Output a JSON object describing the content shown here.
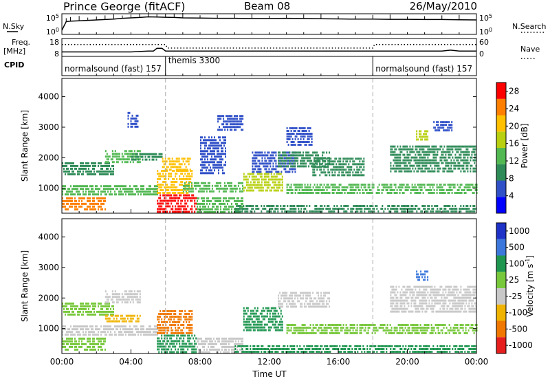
{
  "header": {
    "station": "Prince George (fitACF)",
    "beam": "Beam 08",
    "date": "26/May/2010"
  },
  "strip_labels": {
    "nsky": "N.Sky",
    "nsearch": "N.Search",
    "freq_line1": "Freq.",
    "freq_line2": "[MHz]",
    "nave": "Nave",
    "cpid": "CPID"
  },
  "chart_data": [
    {
      "type": "line",
      "panel": "noise",
      "left_ticks": [
        "10^5",
        "10^0"
      ],
      "right_ticks": [
        "10^5",
        "10^0"
      ],
      "series": [
        {
          "name": "N.Sky",
          "style": "solid",
          "x": [
            0,
            0.25,
            0.5,
            1,
            1.5,
            2,
            2.5,
            3,
            3.5,
            4,
            4.5,
            5,
            5.5,
            6,
            6.5,
            7,
            8,
            9,
            10,
            11,
            12,
            13,
            14,
            15,
            16,
            17,
            18,
            19,
            20,
            21,
            22,
            23,
            24
          ],
          "y": [
            0.2,
            0.62,
            0.64,
            0.66,
            0.68,
            0.7,
            0.72,
            0.74,
            0.78,
            0.8,
            0.82,
            0.85,
            0.84,
            0.83,
            0.82,
            0.8,
            0.79,
            0.78,
            0.78,
            0.77,
            0.77,
            0.78,
            0.77,
            0.76,
            0.75,
            0.74,
            0.74,
            0.73,
            0.73,
            0.72,
            0.72,
            0.71,
            0.7
          ]
        }
      ]
    },
    {
      "type": "line",
      "panel": "frequency",
      "left_ticks": [
        "18",
        "8"
      ],
      "right_ticks": [
        "60",
        "0"
      ],
      "series": [
        {
          "name": "Freq.",
          "style": "solid",
          "x": [
            0,
            1,
            2,
            3,
            4,
            5,
            5.3,
            5.5,
            5.8,
            6,
            6.5,
            8,
            10,
            12,
            14,
            16,
            18,
            19,
            20,
            21,
            22,
            22.5,
            23,
            24
          ],
          "y": [
            10.5,
            10.5,
            10.5,
            10.5,
            10.5,
            11,
            11,
            12.5,
            12.5,
            11,
            11,
            11,
            11,
            11,
            11,
            11,
            11,
            11,
            11,
            11,
            11,
            11.5,
            11,
            11
          ]
        },
        {
          "name": "Nave",
          "style": "dotted",
          "x": [
            0,
            6,
            6.1,
            18,
            18.1,
            24
          ],
          "y": [
            40,
            40,
            28,
            28,
            40,
            40
          ]
        }
      ]
    },
    {
      "type": "table",
      "panel": "cpid",
      "segments": [
        {
          "label": "normalsound (fast) 157",
          "start": 0.0,
          "end": 6.0
        },
        {
          "label": "themis 3300",
          "start": 6.0,
          "end": 18.0
        },
        {
          "label": "normalsound (fast) 157",
          "start": 18.0,
          "end": 24.0
        }
      ]
    },
    {
      "type": "heatmap",
      "panel": "power",
      "ylabel": "Slant Range [km]",
      "y_ticks": [
        1000,
        2000,
        3000,
        4000
      ],
      "ylim": [
        180,
        4600
      ],
      "colorbar": {
        "label": "Power [dB]",
        "ticks": [
          4,
          8,
          12,
          16,
          20,
          24,
          28
        ],
        "range": [
          0,
          30
        ],
        "colors": [
          "#0000ff",
          "#3050c8",
          "#2e8b57",
          "#52b852",
          "#b8d010",
          "#ffc000",
          "#ff8000",
          "#ff0000"
        ]
      },
      "regions": [
        {
          "t": [
            0.0,
            2.5
          ],
          "r": [
            300,
            700
          ],
          "v": 24
        },
        {
          "t": [
            0.0,
            5.5
          ],
          "r": [
            750,
            1100
          ],
          "v": 14
        },
        {
          "t": [
            0.0,
            3.0
          ],
          "r": [
            1450,
            1850
          ],
          "v": 10
        },
        {
          "t": [
            2.5,
            4.5
          ],
          "r": [
            1850,
            2250
          ],
          "v": 12
        },
        {
          "t": [
            4.0,
            5.8
          ],
          "r": [
            1950,
            2150
          ],
          "v": 8
        },
        {
          "t": [
            5.5,
            7.8
          ],
          "r": [
            180,
            800
          ],
          "v": 28
        },
        {
          "t": [
            5.5,
            7.5
          ],
          "r": [
            800,
            1600
          ],
          "v": 22
        },
        {
          "t": [
            5.8,
            7.4
          ],
          "r": [
            1600,
            2000
          ],
          "v": 20
        },
        {
          "t": [
            7.8,
            10.5
          ],
          "r": [
            180,
            700
          ],
          "v": 13
        },
        {
          "t": [
            7.0,
            10.5
          ],
          "r": [
            850,
            1200
          ],
          "v": 12
        },
        {
          "t": [
            8.0,
            9.5
          ],
          "r": [
            1450,
            2700
          ],
          "v": 7
        },
        {
          "t": [
            10.5,
            12.8
          ],
          "r": [
            900,
            1500
          ],
          "v": 16
        },
        {
          "t": [
            11.0,
            13.5
          ],
          "r": [
            1500,
            2200
          ],
          "v": 7
        },
        {
          "t": [
            9.0,
            10.5
          ],
          "r": [
            2900,
            3400
          ],
          "v": 7
        },
        {
          "t": [
            12.5,
            15.5
          ],
          "r": [
            1700,
            2200
          ],
          "v": 9
        },
        {
          "t": [
            13.0,
            14.5
          ],
          "r": [
            2400,
            3000
          ],
          "v": 6
        },
        {
          "t": [
            14.5,
            17.5
          ],
          "r": [
            1400,
            2000
          ],
          "v": 8
        },
        {
          "t": [
            13.0,
            24.0
          ],
          "r": [
            800,
            1150
          ],
          "v": 12
        },
        {
          "t": [
            10.0,
            24.0
          ],
          "r": [
            180,
            450
          ],
          "v": 10
        },
        {
          "t": [
            19.0,
            24.0
          ],
          "r": [
            1500,
            2400
          ],
          "v": 10
        },
        {
          "t": [
            20.5,
            21.2
          ],
          "r": [
            2600,
            2900
          ],
          "v": 18
        },
        {
          "t": [
            3.8,
            4.4
          ],
          "r": [
            3000,
            3500
          ],
          "v": 6
        },
        {
          "t": [
            21.5,
            22.6
          ],
          "r": [
            2900,
            3200
          ],
          "v": 6
        }
      ]
    },
    {
      "type": "heatmap",
      "panel": "velocity",
      "ylabel": "Slant Range [km]",
      "xlabel": "Time UT",
      "x_ticks": [
        "00:00",
        "04:00",
        "08:00",
        "12:00",
        "16:00",
        "20:00",
        "00:00"
      ],
      "y_ticks": [
        1000,
        2000,
        3000,
        4000
      ],
      "ylim": [
        180,
        4600
      ],
      "colorbar": {
        "label": "Velocity [m s^-1]",
        "ticks": [
          "1000",
          "500",
          "100",
          "25",
          "-25",
          "-100",
          "-500",
          "-1000"
        ],
        "colors": [
          "#1e32c8",
          "#3c78dc",
          "#1e9650",
          "#78c83c",
          "#c8c8c8",
          "#f0b400",
          "#f07800",
          "#e61e1e"
        ]
      },
      "regions": [
        {
          "t": [
            0.0,
            2.5
          ],
          "r": [
            300,
            700
          ],
          "v": "25"
        },
        {
          "t": [
            0.0,
            5.5
          ],
          "r": [
            750,
            1100
          ],
          "v": "-25"
        },
        {
          "t": [
            0.0,
            3.0
          ],
          "r": [
            1450,
            1850
          ],
          "v": "25"
        },
        {
          "t": [
            2.5,
            4.5
          ],
          "r": [
            1850,
            2250
          ],
          "v": "-25"
        },
        {
          "t": [
            5.5,
            7.8
          ],
          "r": [
            180,
            800
          ],
          "v": "100"
        },
        {
          "t": [
            5.5,
            7.5
          ],
          "r": [
            800,
            1600
          ],
          "v": "-500"
        },
        {
          "t": [
            2.5,
            4.5
          ],
          "r": [
            1200,
            1450
          ],
          "v": "-100"
        },
        {
          "t": [
            7.8,
            10.5
          ],
          "r": [
            180,
            700
          ],
          "v": "-25"
        },
        {
          "t": [
            10.5,
            12.8
          ],
          "r": [
            900,
            1700
          ],
          "v": "100"
        },
        {
          "t": [
            12.5,
            15.5
          ],
          "r": [
            1700,
            2200
          ],
          "v": "-25"
        },
        {
          "t": [
            13.0,
            24.0
          ],
          "r": [
            800,
            1150
          ],
          "v": "25"
        },
        {
          "t": [
            10.0,
            24.0
          ],
          "r": [
            180,
            450
          ],
          "v": "100"
        },
        {
          "t": [
            19.0,
            24.0
          ],
          "r": [
            1500,
            2400
          ],
          "v": "-25"
        },
        {
          "t": [
            20.5,
            21.2
          ],
          "r": [
            2600,
            2900
          ],
          "v": "500"
        }
      ]
    }
  ]
}
